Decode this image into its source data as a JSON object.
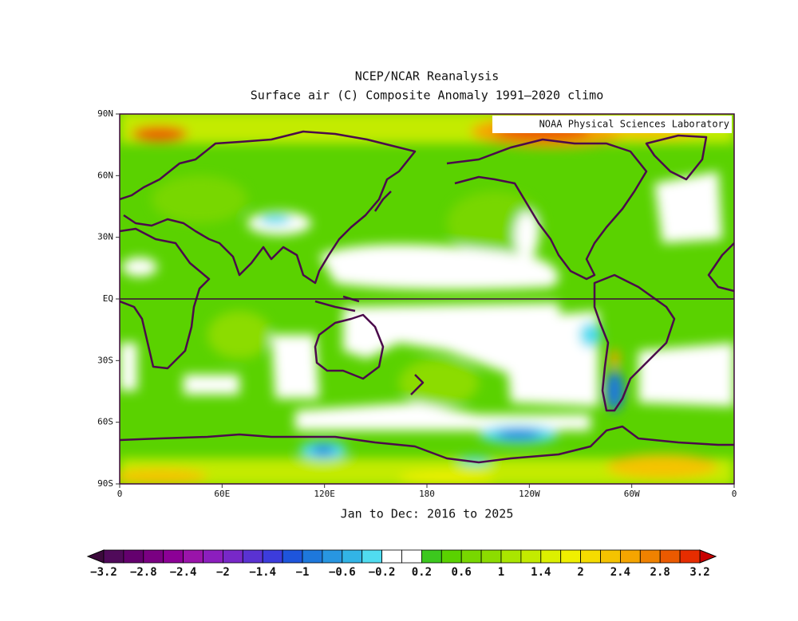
{
  "header": {
    "title": "NCEP/NCAR Reanalysis",
    "subtitle": "Surface air (C) Composite Anomaly 1991–2020 climo"
  },
  "map": {
    "watermark": "NOAA Physical Sciences Laboratory",
    "lat_labels": [
      "90N",
      "60N",
      "30N",
      "EQ",
      "30S",
      "60S",
      "90S"
    ],
    "lon_labels": [
      "0",
      "60E",
      "120E",
      "180",
      "120W",
      "60W",
      "0"
    ],
    "period": "Jan to Dec: 2016 to 2025"
  },
  "colorbar": {
    "labels": [
      "−3.2",
      "−2.8",
      "−2.4",
      "−2",
      "−1.4",
      "−1",
      "−0.6",
      "−0.2",
      "0.2",
      "0.6",
      "1",
      "1.4",
      "2",
      "2.4",
      "2.8",
      "3.2"
    ],
    "colors": [
      "#3c0a3c",
      "#500a5a",
      "#64006e",
      "#7a0082",
      "#8c0096",
      "#9a14aa",
      "#8c1ebe",
      "#7828c8",
      "#5a32d2",
      "#3c3cdc",
      "#1e55dc",
      "#1e78dc",
      "#2896e1",
      "#32b4e6",
      "#50dcf0",
      "#ffffff",
      "#ffffff",
      "#3cc81e",
      "#5ad200",
      "#78d700",
      "#8cdc00",
      "#aae600",
      "#c3eb00",
      "#dcf000",
      "#f0f000",
      "#f5dc00",
      "#f5c300",
      "#f5a500",
      "#f08200",
      "#eb5a00",
      "#e62d00",
      "#c80000"
    ]
  }
}
